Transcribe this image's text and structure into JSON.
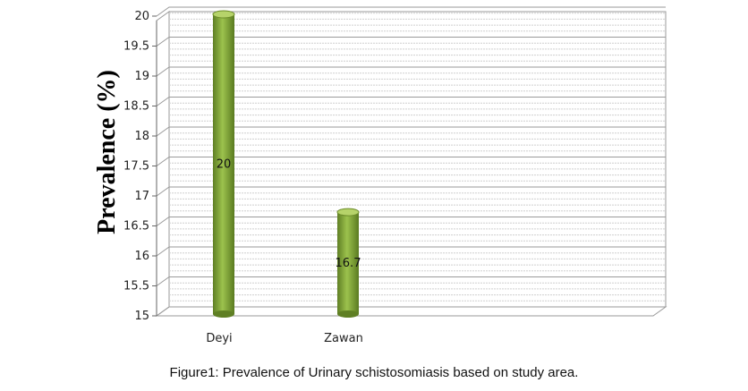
{
  "chart_data": {
    "type": "bar",
    "categories": [
      "Deyi",
      "Zawan"
    ],
    "values": [
      20,
      16.7
    ],
    "data_labels": [
      "20",
      "16.7"
    ],
    "ylabel": "Prevalence (%)",
    "xlabel": "",
    "ylim": [
      15,
      20
    ],
    "yticks": [
      "15",
      "15.5",
      "16",
      "16.5",
      "17",
      "17.5",
      "18",
      "18.5",
      "19",
      "19.5",
      "20"
    ],
    "grid": true,
    "legend": "none",
    "bar_color": "#7fa63a"
  },
  "caption": "Figure1: Prevalence of Urinary schistosomiasis based on study area."
}
